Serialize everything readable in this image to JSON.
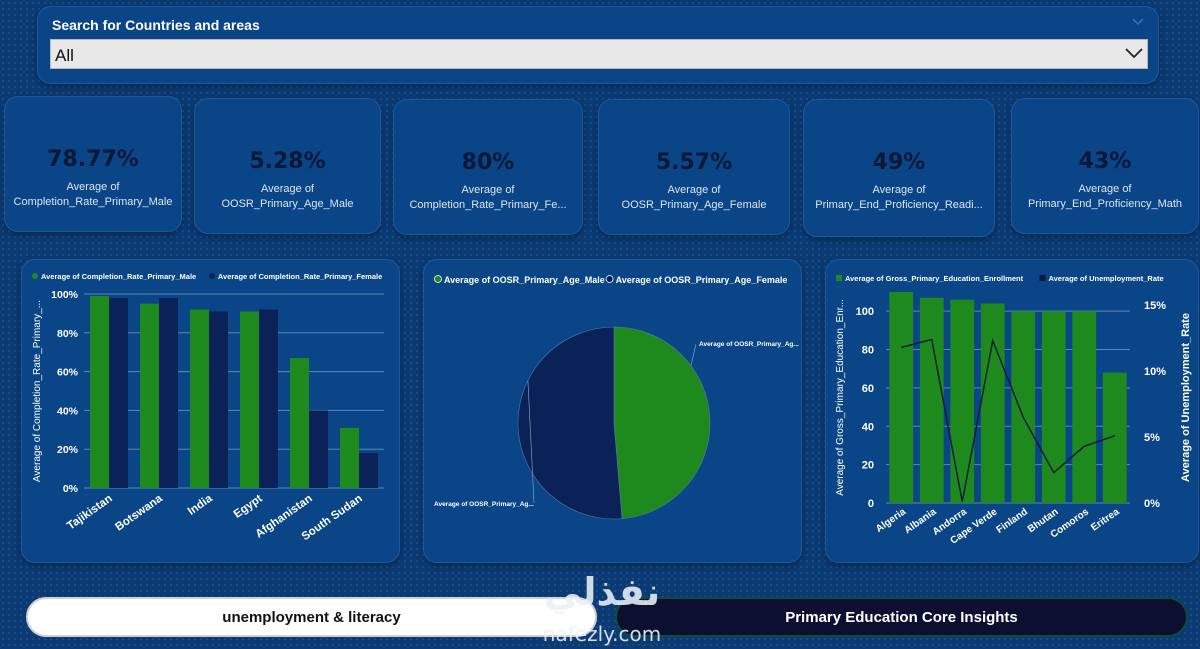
{
  "slicer": {
    "title": "Search for Countries and areas",
    "selected": "All"
  },
  "kpis": [
    {
      "value": "78.77%",
      "line1": "Average of",
      "line2": "Completion_Rate_Primary_Male"
    },
    {
      "value": "5.28%",
      "line1": "Average of",
      "line2": "OOSR_Primary_Age_Male"
    },
    {
      "value": "80%",
      "line1": "Average of",
      "line2": "Completion_Rate_Primary_Fe..."
    },
    {
      "value": "5.57%",
      "line1": "Average of",
      "line2": "OOSR_Primary_Age_Female"
    },
    {
      "value": "49%",
      "line1": "Average of",
      "line2": "Primary_End_Proficiency_Readi..."
    },
    {
      "value": "43%",
      "line1": "Average of",
      "line2": "Primary_End_Proficiency_Math"
    }
  ],
  "chart_data": [
    {
      "type": "bar",
      "legend_position": "top-left",
      "categories": [
        "Tajikistan",
        "Botswana",
        "India",
        "Egypt",
        "Afghanistan",
        "South Sudan"
      ],
      "series": [
        {
          "name": "Average of Completion_Rate_Primary_Male",
          "color": "#1e8a1e",
          "values": [
            99,
            95,
            92,
            91,
            67,
            31
          ]
        },
        {
          "name": "Average of Completion_Rate_Primary_Female",
          "color": "#0a2258",
          "values": [
            98,
            98,
            91,
            92,
            40,
            18
          ]
        }
      ],
      "ylabel": "Average of Completion_Rate_Primary_...",
      "ylim": [
        0,
        100
      ],
      "yticks": [
        "0%",
        "20%",
        "40%",
        "60%",
        "80%",
        "100%"
      ],
      "grid": true
    },
    {
      "type": "pie",
      "legend_position": "top-left",
      "slices": [
        {
          "name": "Average of OOSR_Primary_Age_Male",
          "value": 5.28,
          "color": "#1e8a1e"
        },
        {
          "name": "Average of OOSR_Primary_Age_Female",
          "value": 5.57,
          "color": "#0a2258"
        }
      ],
      "data_labels": [
        "Average of OOSR_Primary_Ag...",
        "Average of OOSR_Primary_Ag..."
      ]
    },
    {
      "type": "bar",
      "combo": "bar+line",
      "legend_position": "top-left",
      "categories": [
        "Algeria",
        "Albania",
        "Andorra",
        "Cape Verde",
        "Finland",
        "Bhutan",
        "Comoros",
        "Eritrea"
      ],
      "series": [
        {
          "name": "Average of Gross_Primary_Education_Enrollment",
          "type": "bar",
          "color": "#1e8a1e",
          "values": [
            110,
            107,
            106,
            104,
            100,
            100,
            100,
            68
          ]
        },
        {
          "name": "Average of Unemployment_Rate",
          "type": "line",
          "color": "#0a1838",
          "values": [
            11.8,
            12.4,
            0.1,
            12.3,
            6.5,
            2.3,
            4.3,
            5.1
          ]
        }
      ],
      "ylabel": "Average of Gross_Primary_Education_Enr...",
      "y2label": "Average of Unemployment_Rate",
      "ylim": [
        0,
        110
      ],
      "yticks": [
        "0",
        "20",
        "40",
        "60",
        "80",
        "100"
      ],
      "y2lim": [
        0,
        16
      ],
      "y2ticks": [
        "0%",
        "5%",
        "10%",
        "15%"
      ],
      "grid": true
    }
  ],
  "tabs": {
    "left_label": "unemployment & literacy",
    "right_label": "Primary Education Core Insights"
  },
  "watermark": {
    "arabic": "نفذلي",
    "latin": "nafezly.com"
  },
  "colors": {
    "background": "#0b3b75",
    "panel": "#0a4587",
    "male_green": "#1e8a1e",
    "female_navy": "#0a2258"
  }
}
